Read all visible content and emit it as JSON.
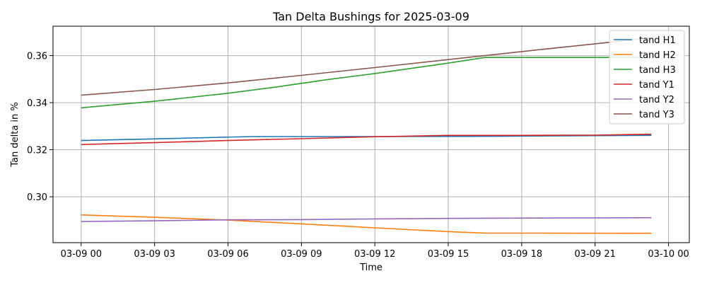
{
  "chart_data": {
    "type": "line",
    "title": "Tan Delta Bushings for 2025-03-09",
    "xlabel": "Time",
    "ylabel": "Tan delta in %",
    "x_unit": "hours since 2025-03-09 00:00",
    "xlim": [
      -1.15,
      24.85
    ],
    "ylim": [
      0.2805,
      0.3725
    ],
    "x_ticks": [
      {
        "value": 0,
        "label": "03-09 00"
      },
      {
        "value": 3,
        "label": "03-09 03"
      },
      {
        "value": 6,
        "label": "03-09 06"
      },
      {
        "value": 9,
        "label": "03-09 09"
      },
      {
        "value": 12,
        "label": "03-09 12"
      },
      {
        "value": 15,
        "label": "03-09 15"
      },
      {
        "value": 18,
        "label": "03-09 18"
      },
      {
        "value": 21,
        "label": "03-09 21"
      },
      {
        "value": 24,
        "label": "03-10 00"
      }
    ],
    "y_ticks": [
      {
        "value": 0.3,
        "label": "0.30"
      },
      {
        "value": 0.32,
        "label": "0.32"
      },
      {
        "value": 0.34,
        "label": "0.34"
      },
      {
        "value": 0.36,
        "label": "0.36"
      }
    ],
    "grid": true,
    "legend_position": "top-right",
    "series": [
      {
        "name": "tand H1",
        "color": "#1f77b4",
        "x": [
          0,
          3,
          7,
          12,
          16.5,
          23.3
        ],
        "y": [
          0.3239,
          0.3246,
          0.3256,
          0.3256,
          0.3257,
          0.3261
        ]
      },
      {
        "name": "tand H2",
        "color": "#ff7f0e",
        "x": [
          0,
          3,
          6,
          9,
          12,
          15,
          16.5,
          23.3
        ],
        "y": [
          0.2923,
          0.2913,
          0.2901,
          0.2885,
          0.2868,
          0.2852,
          0.2846,
          0.2845
        ]
      },
      {
        "name": "tand H3",
        "color": "#2ca02c",
        "x": [
          0,
          3,
          6,
          8,
          10,
          12,
          15,
          16.5,
          23.3
        ],
        "y": [
          0.3378,
          0.3406,
          0.344,
          0.3467,
          0.3497,
          0.3524,
          0.3568,
          0.3592,
          0.3592
        ]
      },
      {
        "name": "tand Y1",
        "color": "#d62728",
        "x": [
          0,
          3,
          6,
          9,
          12,
          15,
          18,
          21,
          23.3
        ],
        "y": [
          0.3222,
          0.323,
          0.3239,
          0.3247,
          0.3255,
          0.3261,
          0.3261,
          0.3262,
          0.3266
        ]
      },
      {
        "name": "tand Y2",
        "color": "#9467bd",
        "x": [
          0,
          3,
          6,
          9,
          12,
          16.5,
          23.3
        ],
        "y": [
          0.2895,
          0.2898,
          0.2902,
          0.2903,
          0.2906,
          0.2909,
          0.2911
        ]
      },
      {
        "name": "tand Y3",
        "color": "#8c564b",
        "x": [
          0,
          3,
          6,
          9,
          12,
          15,
          18,
          21,
          23.3
        ],
        "y": [
          0.3432,
          0.3456,
          0.3484,
          0.3516,
          0.3549,
          0.3583,
          0.3617,
          0.365,
          0.3675
        ]
      }
    ]
  }
}
